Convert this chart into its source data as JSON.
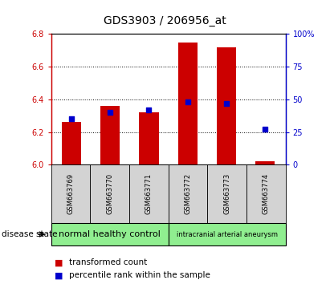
{
  "title": "GDS3903 / 206956_at",
  "samples": [
    "GSM663769",
    "GSM663770",
    "GSM663771",
    "GSM663772",
    "GSM663773",
    "GSM663774"
  ],
  "bar_values": [
    6.26,
    6.36,
    6.32,
    6.75,
    6.72,
    6.02
  ],
  "percentile_values": [
    35,
    40,
    42,
    48,
    47,
    27
  ],
  "ylim_left": [
    6.0,
    6.8
  ],
  "ylim_right": [
    0,
    100
  ],
  "yticks_left": [
    6.0,
    6.2,
    6.4,
    6.6,
    6.8
  ],
  "yticks_right": [
    0,
    25,
    50,
    75,
    100
  ],
  "bar_color": "#cc0000",
  "dot_color": "#0000cc",
  "bar_width": 0.5,
  "group1_label": "normal healthy control",
  "group2_label": "intracranial arterial aneurysm",
  "group_color": "#90ee90",
  "sample_box_color": "#d3d3d3",
  "disease_state_label": "disease state",
  "legend_red_label": "transformed count",
  "legend_blue_label": "percentile rank within the sample",
  "title_fontsize": 10,
  "tick_fontsize": 7,
  "sample_fontsize": 6,
  "group_fontsize1": 8,
  "group_fontsize2": 6,
  "legend_fontsize": 7.5
}
